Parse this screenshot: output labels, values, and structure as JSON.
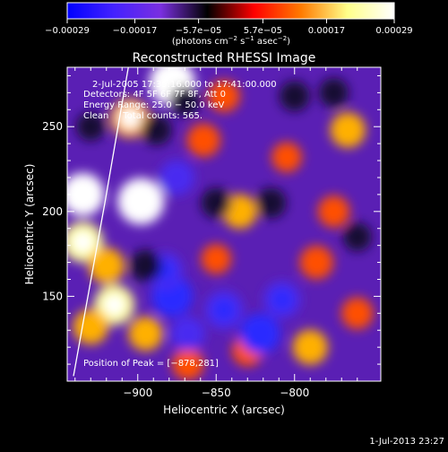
{
  "chart_data": {
    "type": "heatmap",
    "title": "Reconstructed RHESSI Image",
    "xlabel": "Heliocentric X (arcsec)",
    "ylabel": "Heliocentric Y (arcsec)",
    "x_ticks": [
      -900,
      -850,
      -800
    ],
    "y_ticks": [
      150,
      200,
      250
    ],
    "x_tick_labels": [
      "−900",
      "−850",
      "−800"
    ],
    "y_tick_labels": [
      "150",
      "200",
      "250"
    ],
    "xlim": [
      -945,
      -745
    ],
    "ylim": [
      100,
      285
    ],
    "grid": false,
    "colorbar": {
      "ticks": [
        -0.00029,
        -0.00017,
        -5.7e-05,
        5.7e-05,
        0.00017,
        0.00029
      ],
      "tick_labels": [
        "−0.00029",
        "−0.00017",
        "−5.7e−05",
        "5.7e−05",
        "0.00017",
        "0.00029"
      ],
      "range": [
        -0.00029,
        0.00029
      ],
      "unit_main": "(photons cm",
      "unit_exp1": "−2",
      "unit_mid": " s",
      "unit_exp2": "−1",
      "unit_tail": " asec",
      "unit_exp3": "−2",
      "unit_close": ")",
      "stops": [
        "#0000ff",
        "#4422ff",
        "#7a2fe0",
        "#000000",
        "#ff0000",
        "#ff7a00",
        "#ffff8a",
        "#ffffff"
      ]
    },
    "annotations": {
      "time_range": "2-Jul-2005 17:39:16.000 to 17:41:00.000",
      "detectors": "Detectors: 4F 5F 6F 7F 8F, Att 0",
      "energy": "Energy Range: 25.0 − 50.0 keV",
      "clean": "Clean     Total counts: 565.",
      "peak": "Position of Peak = [−878,281]"
    },
    "limb_line": [
      [
        -941,
        103
      ],
      [
        -921,
        205
      ],
      [
        -906,
        285
      ]
    ],
    "blobs": [
      {
        "x": -898,
        "y": 206,
        "v": 0.00029
      },
      {
        "x": -935,
        "y": 210,
        "v": 0.00025
      },
      {
        "x": -935,
        "y": 182,
        "v": 0.00022
      },
      {
        "x": -905,
        "y": 255,
        "v": 0.0002
      },
      {
        "x": -878,
        "y": 276,
        "v": 0.00028
      },
      {
        "x": -920,
        "y": 168,
        "v": 0.00017
      },
      {
        "x": -915,
        "y": 145,
        "v": 0.00022
      },
      {
        "x": -930,
        "y": 132,
        "v": 0.00016
      },
      {
        "x": -895,
        "y": 128,
        "v": 0.00015
      },
      {
        "x": -858,
        "y": 242,
        "v": 0.00014
      },
      {
        "x": -845,
        "y": 268,
        "v": 0.00012
      },
      {
        "x": -835,
        "y": 200,
        "v": 0.00015
      },
      {
        "x": -850,
        "y": 172,
        "v": 0.0001
      },
      {
        "x": -786,
        "y": 170,
        "v": 0.00014
      },
      {
        "x": -805,
        "y": 232,
        "v": 0.0001
      },
      {
        "x": -766,
        "y": 248,
        "v": 0.00016
      },
      {
        "x": -775,
        "y": 200,
        "v": 0.00012
      },
      {
        "x": -790,
        "y": 120,
        "v": 0.00016
      },
      {
        "x": -760,
        "y": 140,
        "v": 0.00012
      },
      {
        "x": -830,
        "y": 118,
        "v": 0.00011
      },
      {
        "x": -868,
        "y": 110,
        "v": 0.00012
      },
      {
        "x": -875,
        "y": 220,
        "v": -0.00016
      },
      {
        "x": -888,
        "y": 248,
        "v": -0.0001
      },
      {
        "x": -870,
        "y": 265,
        "v": -0.0001
      },
      {
        "x": -878,
        "y": 150,
        "v": -0.00023
      },
      {
        "x": -883,
        "y": 165,
        "v": -0.00018
      },
      {
        "x": -895,
        "y": 168,
        "v": -0.00012
      },
      {
        "x": -868,
        "y": 128,
        "v": -0.00015
      },
      {
        "x": -845,
        "y": 142,
        "v": -0.0002
      },
      {
        "x": -822,
        "y": 128,
        "v": -0.00022
      },
      {
        "x": -808,
        "y": 148,
        "v": -0.00018
      },
      {
        "x": -850,
        "y": 205,
        "v": -0.0001
      },
      {
        "x": -815,
        "y": 205,
        "v": -0.0001
      },
      {
        "x": -800,
        "y": 268,
        "v": -0.0001
      },
      {
        "x": -775,
        "y": 270,
        "v": -9e-05
      },
      {
        "x": -760,
        "y": 185,
        "v": -8e-05
      },
      {
        "x": -930,
        "y": 250,
        "v": -8e-05
      }
    ]
  },
  "timestamp": "1-Jul-2013 23:27"
}
